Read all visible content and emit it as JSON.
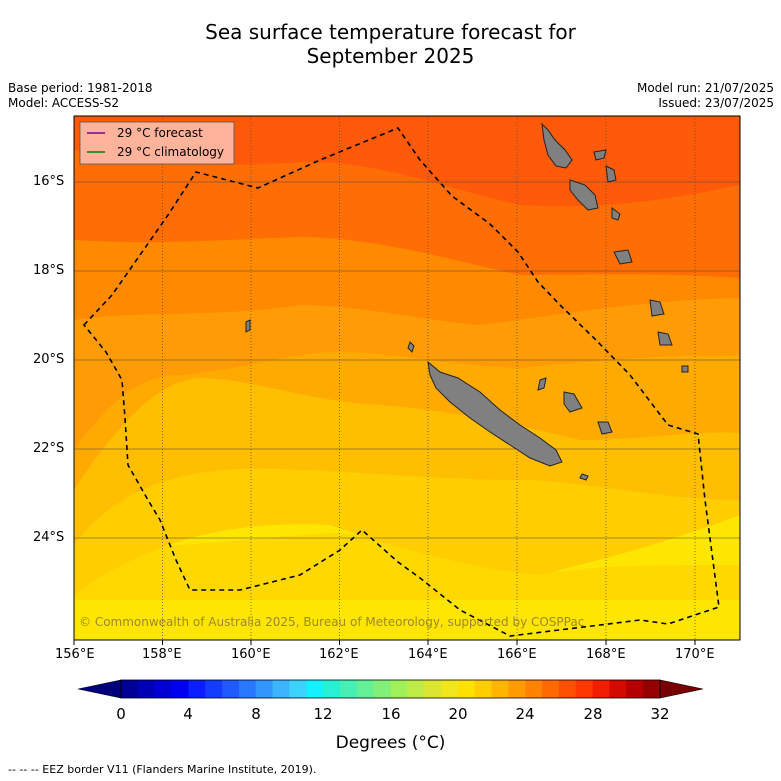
{
  "header": {
    "title_line1": "Sea surface temperature forecast for",
    "title_line2": "September 2025",
    "base_period": "Base period: 1981-2018",
    "model": "Model: ACCESS-S2",
    "model_run": "Model run: 21/07/2025",
    "issued": "Issued: 23/07/2025"
  },
  "legend": {
    "items": [
      {
        "label": "29 °C  forecast",
        "color": "#7b1fa2"
      },
      {
        "label": "29 °C  climatology",
        "color": "#1b8a1b"
      }
    ]
  },
  "axes": {
    "lon_ticks": [
      "156°E",
      "158°E",
      "160°E",
      "162°E",
      "164°E",
      "166°E",
      "168°E",
      "170°E"
    ],
    "lat_ticks": [
      "16°S",
      "18°S",
      "20°S",
      "22°S",
      "24°S"
    ]
  },
  "copyright": "© Commonwealth of Australia 2025, Bureau of Meteorology, supported by COSPPac",
  "colorbar": {
    "tick_labels": [
      "0",
      "4",
      "8",
      "12",
      "16",
      "20",
      "24",
      "28",
      "32"
    ],
    "title": "Degrees (°C)",
    "colors": [
      "#000096",
      "#0000b4",
      "#0000d2",
      "#0000f0",
      "#0a1eff",
      "#143cff",
      "#1e5aff",
      "#2878ff",
      "#3296ff",
      "#3cb4ff",
      "#3cd2ff",
      "#14f0ff",
      "#28f0d2",
      "#46f0b4",
      "#64f096",
      "#82f078",
      "#a0f05a",
      "#beeb46",
      "#dce632",
      "#f0e61e",
      "#ffe100",
      "#ffcd00",
      "#ffb400",
      "#ff9b00",
      "#ff8200",
      "#ff6900",
      "#ff5000",
      "#ff3700",
      "#f01e00",
      "#d20a00",
      "#b40000",
      "#960000"
    ]
  },
  "footnote": "--  --  -- EEZ border V11 (Flanders Marine Institute, 2019).",
  "map_colors": {
    "sst_28_5": "#ff5a0a",
    "sst_28": "#ff6e05",
    "sst_27_5": "#ff8a00",
    "sst_27": "#ff9b05",
    "sst_26_5": "#ffaa00",
    "sst_26": "#ffbf00",
    "sst_25_5": "#ffcd00",
    "sst_25": "#ffd800",
    "sst_24_5": "#ffe600",
    "land": "#808080"
  }
}
